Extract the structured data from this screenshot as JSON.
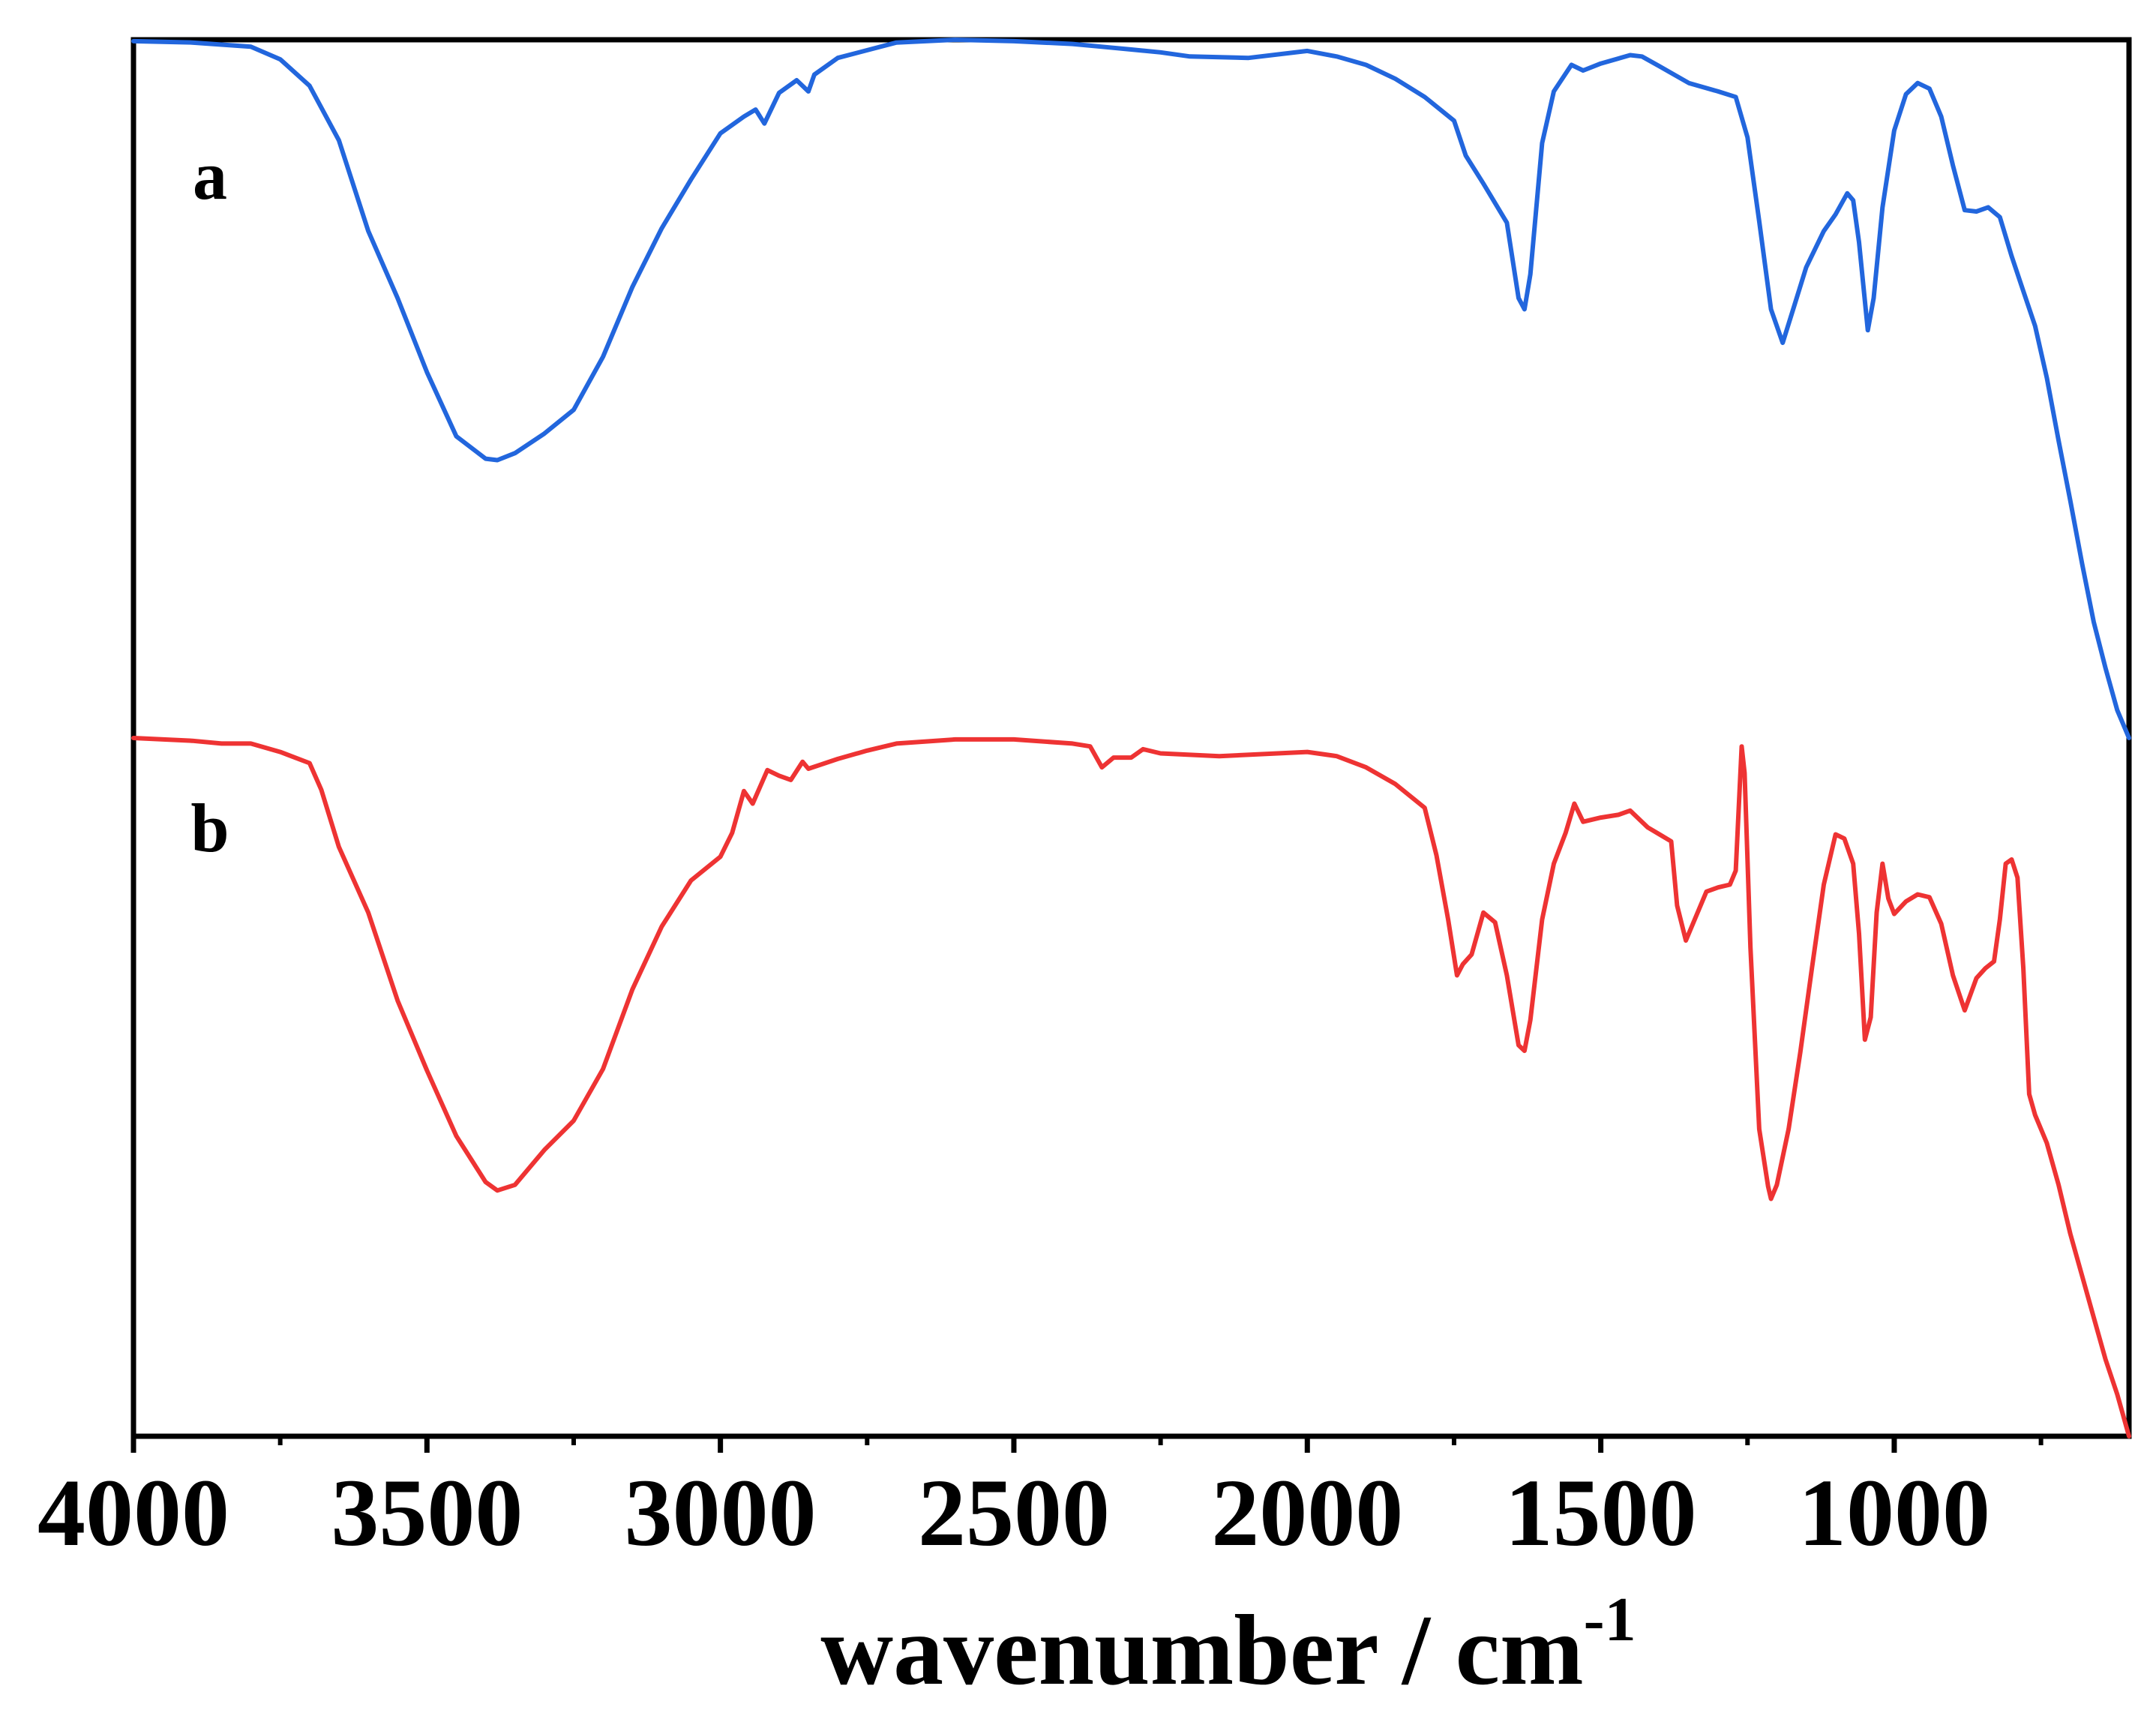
{
  "chart_data": {
    "type": "line",
    "title": "",
    "xlabel": "wavenumber / cm",
    "xlabel_superscript": "-1",
    "ylabel": "",
    "xlim": [
      4000,
      600
    ],
    "ylim": [
      0,
      100
    ],
    "x_reversed": true,
    "grid": false,
    "legend": "none",
    "x_ticks": [
      {
        "value": 4000,
        "label": "4000"
      },
      {
        "value": 3500,
        "label": "3500"
      },
      {
        "value": 3000,
        "label": "3000"
      },
      {
        "value": 2500,
        "label": "2500"
      },
      {
        "value": 2000,
        "label": "2000"
      },
      {
        "value": 1500,
        "label": "1500"
      },
      {
        "value": 1000,
        "label": "1000"
      }
    ],
    "x_minor_ticks": [
      3750,
      3250,
      2750,
      2250,
      1750,
      1250,
      750
    ],
    "series": [
      {
        "name": "a",
        "label": "a",
        "color": "#2266dd",
        "points": [
          [
            4000,
            99.9
          ],
          [
            3900,
            99.8
          ],
          [
            3800,
            99.5
          ],
          [
            3750,
            98.6
          ],
          [
            3700,
            96.7
          ],
          [
            3650,
            92.8
          ],
          [
            3600,
            86.3
          ],
          [
            3550,
            81.5
          ],
          [
            3500,
            76.2
          ],
          [
            3450,
            71.6
          ],
          [
            3400,
            70.0
          ],
          [
            3380,
            69.9
          ],
          [
            3350,
            70.4
          ],
          [
            3300,
            71.8
          ],
          [
            3250,
            73.5
          ],
          [
            3200,
            77.3
          ],
          [
            3150,
            82.3
          ],
          [
            3100,
            86.5
          ],
          [
            3050,
            90.0
          ],
          [
            3000,
            93.3
          ],
          [
            2960,
            94.5
          ],
          [
            2940,
            95.0
          ],
          [
            2925,
            94.0
          ],
          [
            2900,
            96.2
          ],
          [
            2870,
            97.1
          ],
          [
            2850,
            96.3
          ],
          [
            2840,
            97.5
          ],
          [
            2800,
            98.7
          ],
          [
            2700,
            99.8
          ],
          [
            2600,
            100.0
          ],
          [
            2500,
            99.9
          ],
          [
            2400,
            99.7
          ],
          [
            2350,
            99.5
          ],
          [
            2300,
            99.3
          ],
          [
            2250,
            99.1
          ],
          [
            2200,
            98.8
          ],
          [
            2100,
            98.7
          ],
          [
            2000,
            99.2
          ],
          [
            1950,
            98.8
          ],
          [
            1900,
            98.2
          ],
          [
            1850,
            97.2
          ],
          [
            1800,
            95.9
          ],
          [
            1750,
            94.2
          ],
          [
            1730,
            91.7
          ],
          [
            1700,
            89.7
          ],
          [
            1660,
            86.9
          ],
          [
            1640,
            81.5
          ],
          [
            1630,
            80.7
          ],
          [
            1620,
            83.2
          ],
          [
            1600,
            92.6
          ],
          [
            1580,
            96.3
          ],
          [
            1550,
            98.2
          ],
          [
            1530,
            97.8
          ],
          [
            1500,
            98.3
          ],
          [
            1450,
            98.9
          ],
          [
            1430,
            98.8
          ],
          [
            1400,
            98.1
          ],
          [
            1350,
            96.9
          ],
          [
            1300,
            96.3
          ],
          [
            1270,
            95.9
          ],
          [
            1250,
            93.0
          ],
          [
            1230,
            87.0
          ],
          [
            1210,
            80.7
          ],
          [
            1190,
            78.3
          ],
          [
            1170,
            81.0
          ],
          [
            1150,
            83.7
          ],
          [
            1120,
            86.3
          ],
          [
            1100,
            87.5
          ],
          [
            1080,
            89.0
          ],
          [
            1070,
            88.5
          ],
          [
            1060,
            85.5
          ],
          [
            1045,
            79.2
          ],
          [
            1035,
            81.5
          ],
          [
            1020,
            88.0
          ],
          [
            1000,
            93.5
          ],
          [
            980,
            96.1
          ],
          [
            960,
            96.9
          ],
          [
            940,
            96.5
          ],
          [
            920,
            94.5
          ],
          [
            900,
            91.0
          ],
          [
            880,
            87.8
          ],
          [
            860,
            87.7
          ],
          [
            840,
            88.0
          ],
          [
            820,
            87.3
          ],
          [
            800,
            84.5
          ],
          [
            780,
            82.0
          ],
          [
            760,
            79.5
          ],
          [
            740,
            75.8
          ],
          [
            720,
            71.3
          ],
          [
            700,
            67.0
          ],
          [
            680,
            62.5
          ],
          [
            660,
            58.3
          ],
          [
            640,
            55.0
          ],
          [
            620,
            52.0
          ],
          [
            600,
            50.0
          ]
        ]
      },
      {
        "name": "b",
        "label": "b",
        "color": "#ee3333",
        "points": [
          [
            4000,
            50.0
          ],
          [
            3900,
            49.8
          ],
          [
            3850,
            49.6
          ],
          [
            3800,
            49.6
          ],
          [
            3750,
            49.0
          ],
          [
            3700,
            48.2
          ],
          [
            3680,
            46.3
          ],
          [
            3650,
            42.2
          ],
          [
            3600,
            37.5
          ],
          [
            3550,
            31.2
          ],
          [
            3500,
            26.2
          ],
          [
            3450,
            21.5
          ],
          [
            3400,
            18.2
          ],
          [
            3380,
            17.6
          ],
          [
            3350,
            18.0
          ],
          [
            3300,
            20.5
          ],
          [
            3250,
            22.6
          ],
          [
            3200,
            26.3
          ],
          [
            3150,
            32.0
          ],
          [
            3100,
            36.5
          ],
          [
            3050,
            39.8
          ],
          [
            3000,
            41.5
          ],
          [
            2980,
            43.2
          ],
          [
            2960,
            46.2
          ],
          [
            2945,
            45.3
          ],
          [
            2920,
            47.7
          ],
          [
            2900,
            47.3
          ],
          [
            2880,
            47.0
          ],
          [
            2860,
            48.3
          ],
          [
            2850,
            47.8
          ],
          [
            2800,
            48.5
          ],
          [
            2750,
            49.1
          ],
          [
            2700,
            49.6
          ],
          [
            2600,
            49.9
          ],
          [
            2500,
            49.9
          ],
          [
            2400,
            49.6
          ],
          [
            2370,
            49.4
          ],
          [
            2350,
            47.9
          ],
          [
            2330,
            48.6
          ],
          [
            2300,
            48.6
          ],
          [
            2280,
            49.2
          ],
          [
            2250,
            48.9
          ],
          [
            2150,
            48.7
          ],
          [
            2000,
            49.0
          ],
          [
            1950,
            48.7
          ],
          [
            1900,
            47.9
          ],
          [
            1850,
            46.7
          ],
          [
            1800,
            45.0
          ],
          [
            1780,
            41.6
          ],
          [
            1760,
            37.0
          ],
          [
            1745,
            33.0
          ],
          [
            1735,
            33.8
          ],
          [
            1720,
            34.5
          ],
          [
            1700,
            37.5
          ],
          [
            1680,
            36.8
          ],
          [
            1660,
            33.0
          ],
          [
            1640,
            28.0
          ],
          [
            1630,
            27.6
          ],
          [
            1620,
            29.8
          ],
          [
            1600,
            37.0
          ],
          [
            1580,
            41.0
          ],
          [
            1560,
            43.2
          ],
          [
            1545,
            45.3
          ],
          [
            1530,
            44.0
          ],
          [
            1500,
            44.3
          ],
          [
            1470,
            44.5
          ],
          [
            1450,
            44.8
          ],
          [
            1420,
            43.6
          ],
          [
            1400,
            43.1
          ],
          [
            1380,
            42.6
          ],
          [
            1370,
            38.0
          ],
          [
            1355,
            35.5
          ],
          [
            1340,
            37.0
          ],
          [
            1320,
            39.0
          ],
          [
            1300,
            39.3
          ],
          [
            1280,
            39.5
          ],
          [
            1270,
            40.5
          ],
          [
            1260,
            49.4
          ],
          [
            1255,
            47.5
          ],
          [
            1245,
            35.0
          ],
          [
            1230,
            22.0
          ],
          [
            1215,
            17.9
          ],
          [
            1210,
            17.0
          ],
          [
            1200,
            18.0
          ],
          [
            1180,
            22.0
          ],
          [
            1160,
            27.5
          ],
          [
            1140,
            33.6
          ],
          [
            1120,
            39.5
          ],
          [
            1100,
            43.1
          ],
          [
            1085,
            42.8
          ],
          [
            1070,
            41.0
          ],
          [
            1060,
            36.0
          ],
          [
            1050,
            28.4
          ],
          [
            1040,
            30.0
          ],
          [
            1030,
            37.5
          ],
          [
            1020,
            41.0
          ],
          [
            1010,
            38.5
          ],
          [
            1000,
            37.4
          ],
          [
            980,
            38.3
          ],
          [
            960,
            38.8
          ],
          [
            940,
            38.6
          ],
          [
            920,
            36.7
          ],
          [
            900,
            33.0
          ],
          [
            880,
            30.5
          ],
          [
            860,
            32.8
          ],
          [
            845,
            33.5
          ],
          [
            830,
            34.0
          ],
          [
            820,
            37.0
          ],
          [
            810,
            41.0
          ],
          [
            800,
            41.3
          ],
          [
            790,
            40.0
          ],
          [
            780,
            33.5
          ],
          [
            770,
            24.5
          ],
          [
            760,
            23.0
          ],
          [
            740,
            21.0
          ],
          [
            720,
            18.0
          ],
          [
            700,
            14.5
          ],
          [
            680,
            11.5
          ],
          [
            660,
            8.5
          ],
          [
            640,
            5.5
          ],
          [
            620,
            3.0
          ],
          [
            610,
            1.5
          ],
          [
            600,
            0.0
          ]
        ]
      }
    ]
  }
}
